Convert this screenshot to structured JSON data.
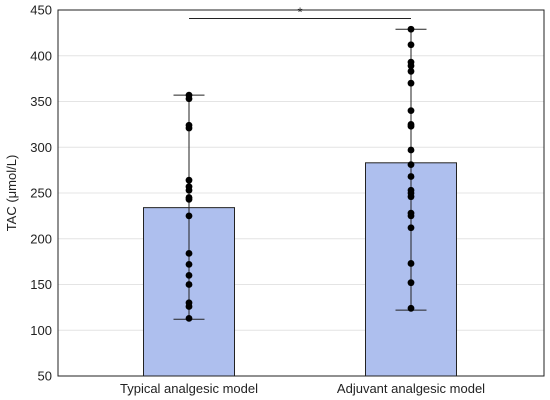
{
  "chart_data": {
    "type": "bar",
    "title": "",
    "xlabel": "",
    "ylabel": "TAC (μmol/L)",
    "ylim": [
      50,
      450
    ],
    "yticks": [
      50,
      100,
      150,
      200,
      250,
      300,
      350,
      400,
      450
    ],
    "grid": true,
    "legend": "none",
    "bar_color": "#aebfee",
    "categories": [
      "Typical analgesic model",
      "Adjuvant analgesic model"
    ],
    "values": [
      234,
      283
    ],
    "ranges": [
      [
        112,
        357
      ],
      [
        122,
        429
      ]
    ],
    "points": [
      [
        357,
        353,
        324,
        321,
        264,
        257,
        253,
        245,
        243,
        225,
        184,
        172,
        160,
        150,
        130,
        126,
        113
      ],
      [
        429,
        412,
        393,
        389,
        383,
        370,
        340,
        325,
        323,
        297,
        281,
        268,
        253,
        250,
        246,
        228,
        225,
        212,
        173,
        152,
        124
      ]
    ],
    "significance": {
      "label": "*",
      "between": [
        0,
        1
      ]
    }
  }
}
